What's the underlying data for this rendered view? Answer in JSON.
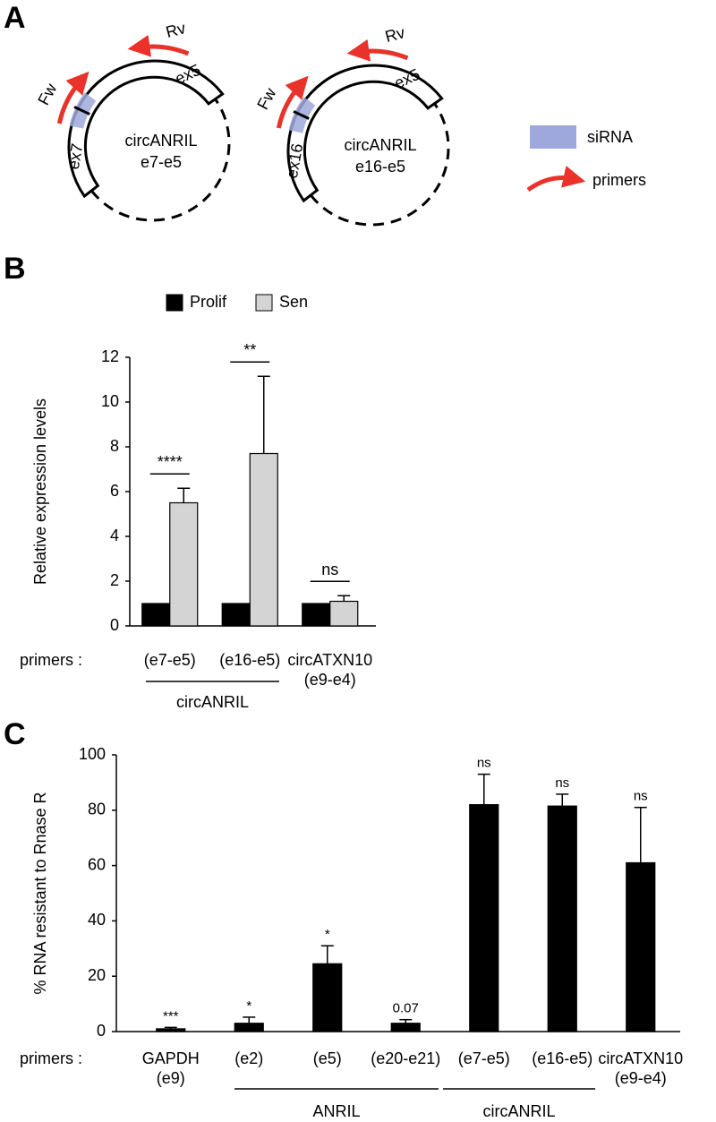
{
  "panel_labels": [
    "A",
    "B",
    "C"
  ],
  "diagram": {
    "circles": [
      {
        "forward": "Fw",
        "reverse": "Rv",
        "exon_left": "ex7",
        "exon_top": "ex5",
        "name": "circANRIL",
        "junction": "e7-e5"
      },
      {
        "forward": "Fw",
        "reverse": "Rv",
        "exon_left": "ex16",
        "exon_top": "ex5",
        "name": "circANRIL",
        "junction": "e16-e5"
      }
    ],
    "legend": [
      {
        "label": "siRNA",
        "color": "#9fa8dc"
      },
      {
        "label": "primers",
        "color": "#e8322a"
      }
    ]
  },
  "chart_data": [
    {
      "type": "bar",
      "ylabel": "Relative expression levels",
      "x_prefix": "primers :",
      "categories": [
        [
          "(e7-e5)"
        ],
        [
          "(e16-e5)"
        ],
        [
          "circATXN10",
          "(e9-e4)"
        ]
      ],
      "series": [
        {
          "name": "Prolif",
          "color": "#000000",
          "values": [
            1,
            1,
            1
          ]
        },
        {
          "name": "Sen",
          "color": "#d4d4d4",
          "values": [
            5.5,
            7.7,
            1.1
          ],
          "errors": [
            0.65,
            3.45,
            0.25
          ]
        }
      ],
      "significance": [
        "****",
        "**",
        "ns"
      ],
      "groups": [
        {
          "label": "circANRIL"
        }
      ],
      "ylim": [
        0,
        12
      ],
      "yticks": [
        0,
        2,
        4,
        6,
        8,
        10,
        12
      ],
      "legend": "top"
    },
    {
      "type": "bar",
      "ylabel": "% RNA resistant to Rnase R",
      "x_prefix": "primers :",
      "categories": [
        [
          "GAPDH",
          "(e9)"
        ],
        [
          "(e2)"
        ],
        [
          "(e5)"
        ],
        [
          "(e20-e21)"
        ],
        [
          "(e7-e5)"
        ],
        [
          "(e16-e5)"
        ],
        [
          "circATXN10",
          "(e9-e4)"
        ]
      ],
      "series": [
        {
          "color": "#000000",
          "values": [
            1,
            3,
            24.5,
            3,
            82,
            81.5,
            61
          ],
          "errors": [
            0.5,
            2.2,
            6.5,
            1.3,
            11,
            4.3,
            20
          ]
        }
      ],
      "significance": [
        "***",
        "*",
        "*",
        "0.07",
        "ns",
        "ns",
        "ns"
      ],
      "groups": [
        {
          "label": "ANRIL"
        },
        {
          "label": "circANRIL"
        }
      ],
      "ylim": [
        0,
        100
      ],
      "yticks": [
        0,
        20,
        40,
        60,
        80,
        100
      ]
    }
  ]
}
